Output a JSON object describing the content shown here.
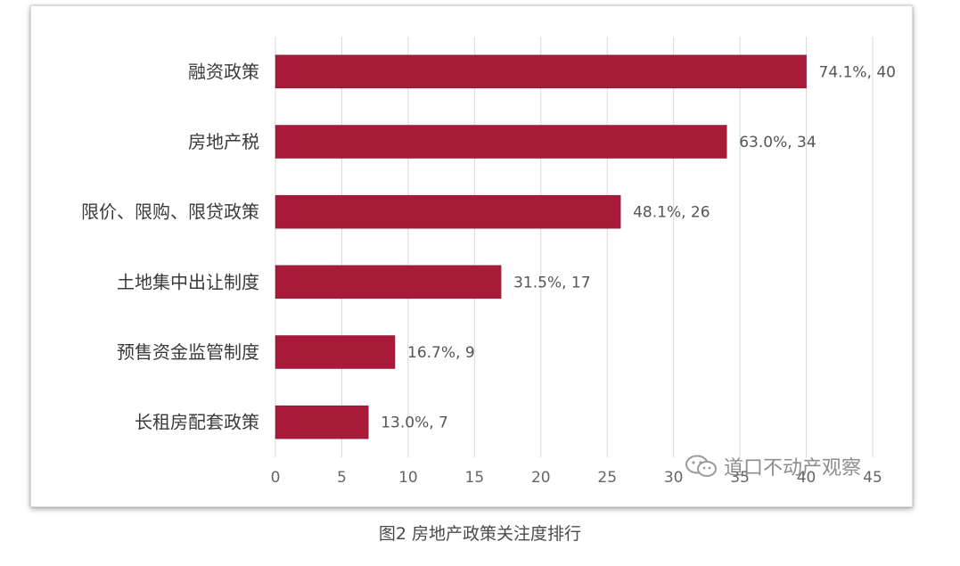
{
  "chart_data": {
    "type": "bar",
    "orientation": "horizontal",
    "categories": [
      "融资政策",
      "房地产税",
      "限价、限购、限贷政策",
      "土地集中出让制度",
      "预售资金监管制度",
      "长租房配套政策"
    ],
    "values": [
      40,
      34,
      26,
      17,
      9,
      7
    ],
    "data_labels": [
      "74.1%, 40",
      "63.0%, 34",
      "48.1%, 26",
      "31.5%, 17",
      "16.7%, 9",
      "13.0%, 7"
    ],
    "xlim": [
      0,
      45
    ],
    "x_ticks": [
      0,
      5,
      10,
      15,
      20,
      25,
      30,
      35,
      40,
      45
    ],
    "grid": "vertical",
    "bar_color": "#a8193a"
  },
  "watermark": {
    "icon": "wechat-icon",
    "text": "道口不动产观察"
  },
  "caption": "图2 房地产政策关注度排行"
}
